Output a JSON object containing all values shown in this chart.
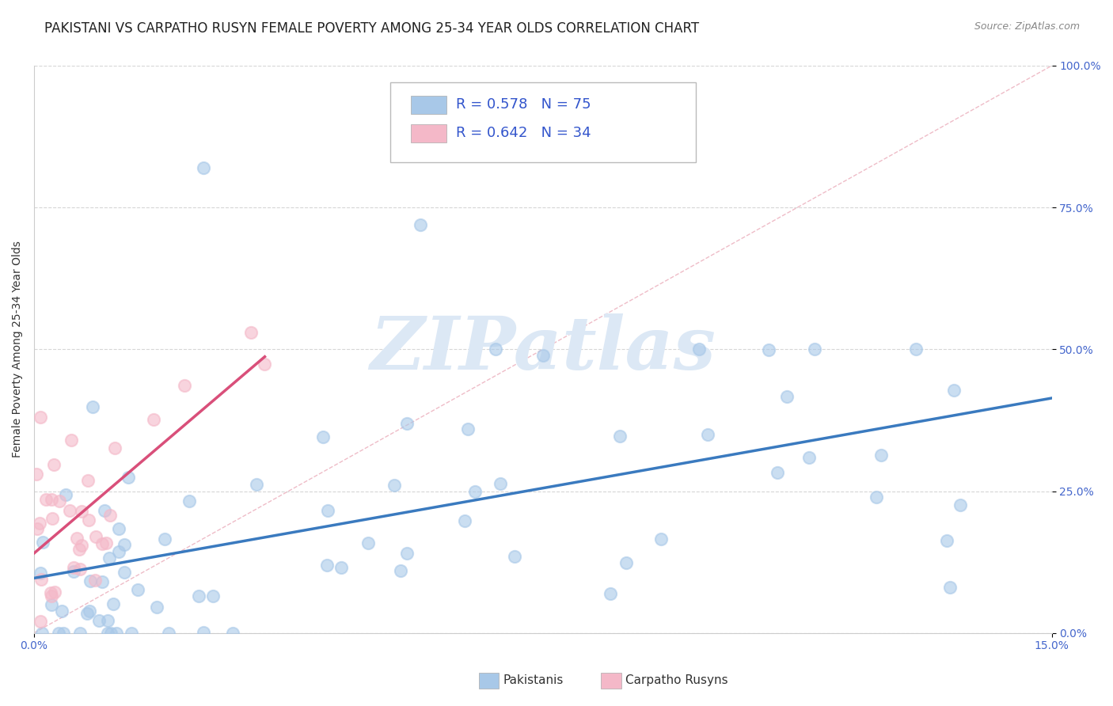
{
  "title": "PAKISTANI VS CARPATHO RUSYN FEMALE POVERTY AMONG 25-34 YEAR OLDS CORRELATION CHART",
  "source": "Source: ZipAtlas.com",
  "xlim": [
    0.0,
    0.15
  ],
  "ylim": [
    0.0,
    1.0
  ],
  "ylabel": "Female Poverty Among 25-34 Year Olds",
  "legend_pakistanis": "Pakistanis",
  "legend_carpatho": "Carpatho Rusyns",
  "r_pakistanis": 0.578,
  "n_pakistanis": 75,
  "r_carpatho": 0.642,
  "n_carpatho": 34,
  "color_pakistanis": "#a8c8e8",
  "color_carpatho": "#f4b8c8",
  "color_line_pakistanis": "#3a7abf",
  "color_line_carpatho": "#d94f7a",
  "background_color": "#ffffff",
  "grid_color": "#cccccc",
  "title_fontsize": 12,
  "axis_label_fontsize": 10,
  "tick_fontsize": 10,
  "watermark": "ZIPatlas",
  "watermark_color": "#dce8f5"
}
